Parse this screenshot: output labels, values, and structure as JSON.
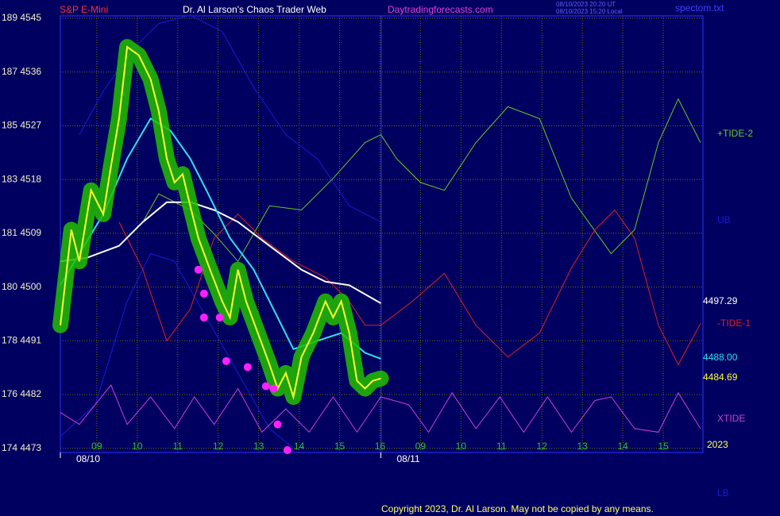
{
  "chart_data": {
    "type": "line",
    "title": "Dr. Al Larson's Chaos Trader Web",
    "instrument": "S&P E-Mini",
    "site": "Daytradingforecasts.com",
    "timestamps": [
      "08/10/2023 20:20 UT",
      "08/10/2023 15:20 Local"
    ],
    "file": "spectom.txt",
    "copyright": "Copyright 2023, Dr. Al Larson. May not be copied by any means.",
    "year": "2023",
    "dates": [
      {
        "value": 0.1,
        "label": "08/10"
      },
      {
        "value": 8.02,
        "label": "08/11"
      }
    ],
    "xlim": [
      0.1,
      15.98
    ],
    "ylim": [
      4472.3,
      4545.4
    ],
    "grid": true,
    "xticks": [
      {
        "value": 1,
        "label": "09"
      },
      {
        "value": 2,
        "label": "10"
      },
      {
        "value": 3,
        "label": "11"
      },
      {
        "value": 4,
        "label": "12"
      },
      {
        "value": 5,
        "label": "13"
      },
      {
        "value": 6,
        "label": "14"
      },
      {
        "value": 7,
        "label": "15"
      },
      {
        "value": 8,
        "label": "16"
      },
      {
        "value": 9,
        "label": "09"
      },
      {
        "value": 10,
        "label": "10"
      },
      {
        "value": 11,
        "label": "11"
      },
      {
        "value": 12,
        "label": "12"
      },
      {
        "value": 13,
        "label": "13"
      },
      {
        "value": 14,
        "label": "14"
      },
      {
        "value": 15,
        "label": "15"
      }
    ],
    "yticks": [
      {
        "value": 4473,
        "label": "174 4473"
      },
      {
        "value": 4482,
        "label": "176 4482"
      },
      {
        "value": 4491,
        "label": "178 4491"
      },
      {
        "value": 4500,
        "label": "180 4500"
      },
      {
        "value": 4509,
        "label": "181 4509"
      },
      {
        "value": 4518,
        "label": "183 4518"
      },
      {
        "value": 4527,
        "label": "185 4527"
      },
      {
        "value": 4536,
        "label": "187 4536"
      },
      {
        "value": 4545,
        "label": "189 4545"
      }
    ],
    "series": [
      {
        "name": "UB",
        "color": "#1a1ad8",
        "x": [
          0.57,
          1.16,
          1.94,
          2.53,
          3.31,
          4.1,
          4.88,
          5.67,
          6.45,
          7.24,
          8.02
        ],
        "values": [
          4525.5,
          4532.8,
          4540.2,
          4544.1,
          4545.5,
          4542.8,
          4533.4,
          4525.5,
          4521.5,
          4513.6,
          4510.9
        ]
      },
      {
        "name": "LB",
        "color": "#1a1ad8",
        "x": [
          0.1,
          0.96,
          1.75,
          2.33,
          2.92,
          3.71,
          4.49,
          5.27,
          5.86
        ],
        "values": [
          4475,
          4480.3,
          4497.6,
          4505.6,
          4504.3,
          4494.9,
          4485.6,
          4476.3,
          4473
        ]
      },
      {
        "name": "+TIDE-2",
        "color": "#66cc22",
        "x": [
          2.14,
          2.53,
          3.31,
          3.9,
          4.49,
          5.27,
          6.06,
          6.84,
          7.63,
          8.02,
          8.41,
          9.0,
          9.59,
          10.37,
          11.16,
          11.94,
          12.73,
          13.71,
          14.29,
          14.88,
          15.37,
          15.92
        ],
        "values": [
          4510.9,
          4515.6,
          4512.9,
          4508.9,
          4504.3,
          4513.6,
          4512.9,
          4518.2,
          4524.2,
          4525.5,
          4521.5,
          4517.5,
          4516.2,
          4524.2,
          4530.2,
          4528.2,
          4514.9,
          4505.6,
          4509.6,
          4524.2,
          4531.5,
          4524.2
        ]
      },
      {
        "name": "-TIDE-1",
        "color": "#e02020",
        "x": [
          1.55,
          2.14,
          2.73,
          3.31,
          3.9,
          4.49,
          5.08,
          5.86,
          6.65,
          7.24,
          7.63,
          8.02,
          8.8,
          9.59,
          10.37,
          11.16,
          11.94,
          12.73,
          13.31,
          13.8,
          14.29,
          14.88,
          15.37,
          15.92
        ],
        "values": [
          4510.9,
          4502.9,
          4491,
          4496.3,
          4508.2,
          4512.2,
          4508.2,
          4504.3,
          4501.6,
          4497.6,
          4493.6,
          4493.6,
          4497.6,
          4502.3,
          4493.6,
          4488.3,
          4492.3,
          4503.2,
          4509.6,
          4512.9,
          4508.2,
          4493.6,
          4487,
          4493.9
        ]
      },
      {
        "name": "XTIDE",
        "color": "#d040d0",
        "x": [
          0.1,
          0.57,
          1.35,
          1.75,
          2.33,
          2.92,
          3.41,
          3.9,
          4.49,
          5.08,
          5.67,
          6.25,
          6.84,
          7.43,
          8.02,
          8.71,
          9.2,
          9.78,
          10.37,
          10.96,
          11.55,
          12.14,
          12.73,
          13.31,
          13.71,
          14.29,
          14.88,
          15.37,
          15.92
        ],
        "values": [
          4479,
          4477,
          4483.6,
          4477,
          4481.6,
          4476.3,
          4481.6,
          4477,
          4483,
          4475.7,
          4479.6,
          4475.7,
          4481.6,
          4475.7,
          4481.6,
          4480.3,
          4475.7,
          4482.3,
          4476.3,
          4481.6,
          4475.7,
          4481.6,
          4475.7,
          4481,
          4481.6,
          4476.3,
          4475.7,
          4482.3,
          4476.3
        ]
      },
      {
        "color": "#ffffff",
        "end_label": "4497.29",
        "x": [
          0.1,
          0.76,
          1.55,
          2.14,
          2.73,
          3.31,
          3.9,
          4.49,
          5.27,
          6.06,
          6.65,
          7.24,
          8.02
        ],
        "values": [
          4504.3,
          4504.9,
          4506.9,
          4510.9,
          4514.2,
          4514.2,
          4512.9,
          4510.9,
          4506.9,
          4502.9,
          4500.9,
          4500.3,
          4497.29
        ]
      },
      {
        "color": "#30e0f0",
        "end_label": "4488.00",
        "x": [
          0.1,
          0.57,
          1.16,
          1.75,
          2.33,
          2.82,
          3.31,
          3.71,
          4.29,
          4.88,
          5.47,
          5.86,
          6.45,
          7.04,
          7.63,
          8.02
        ],
        "values": [
          4500.3,
          4505.6,
          4512.2,
          4521.5,
          4528.2,
          4526.2,
          4521.5,
          4516.2,
          4508.2,
          4502.9,
          4494.9,
          4489.6,
          4491,
          4492.3,
          4489,
          4488
        ]
      },
      {
        "color": "#ffff30",
        "halo": "#22c000",
        "end_label": "4484.69",
        "x": [
          0.1,
          0.37,
          0.57,
          0.86,
          1.16,
          1.35,
          1.55,
          1.75,
          2.04,
          2.33,
          2.53,
          2.73,
          2.92,
          3.12,
          3.31,
          3.51,
          3.8,
          4.1,
          4.29,
          4.49,
          4.69,
          4.98,
          5.27,
          5.47,
          5.67,
          5.86,
          6.06,
          6.35,
          6.65,
          6.84,
          7.04,
          7.24,
          7.43,
          7.63,
          7.82,
          8.02
        ],
        "values": [
          4493.6,
          4509.6,
          4504.3,
          4516.2,
          4512.2,
          4520.2,
          4528.2,
          4540.2,
          4538.8,
          4534.8,
          4529.5,
          4521.5,
          4517.5,
          4518.9,
          4513.6,
          4508.2,
          4502.9,
          4497.6,
          4494.9,
          4502.9,
          4497.6,
          4492.3,
          4487,
          4483,
          4485.6,
          4481.6,
          4488.3,
          4492.3,
          4497.6,
          4494.9,
          4497.6,
          4492.3,
          4484.3,
          4483,
          4484.3,
          4484.69
        ]
      },
      {
        "color": "#ff20ff",
        "style": "dots",
        "x": [
          3.51,
          3.65,
          3.65,
          4.04,
          4.2,
          4.73,
          5.18,
          5.37,
          5.47,
          5.71
        ],
        "values": [
          4502.9,
          4498.9,
          4494.9,
          4494.9,
          4487.6,
          4486.6,
          4483.4,
          4483,
          4477,
          4472.7
        ]
      }
    ]
  }
}
